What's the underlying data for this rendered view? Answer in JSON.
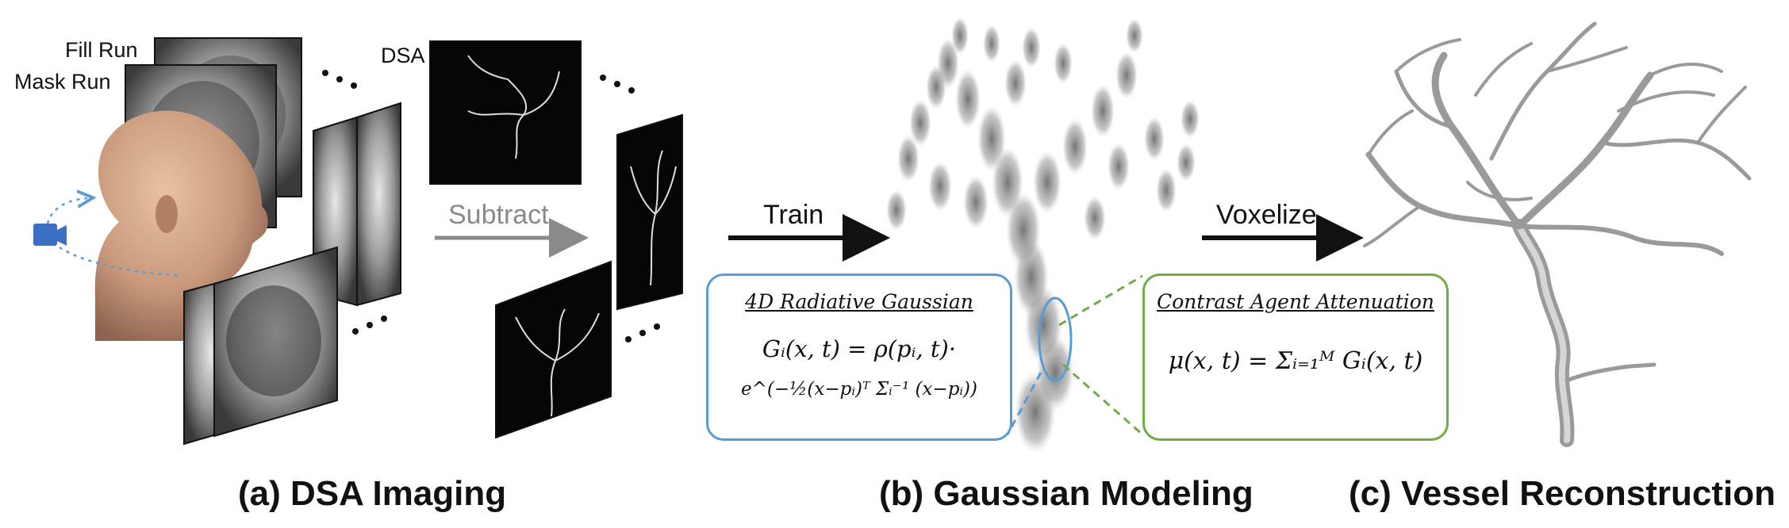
{
  "panel_a": {
    "fill_run": "Fill Run",
    "mask_run": "Mask Run",
    "dsa": "DSA",
    "subtract": "Subtract",
    "caption": "(a) DSA Imaging"
  },
  "panel_b": {
    "train": "Train",
    "caption": "(b) Gaussian Modeling",
    "box_title": "4D Radiative Gaussian",
    "equation_line1": "Gᵢ(x, t) = ρ(pᵢ, t)·",
    "equation_line2": "e^(−½(x−pᵢ)ᵀ Σᵢ⁻¹ (x−pᵢ))"
  },
  "panel_c": {
    "voxelize": "Voxelize",
    "caption": "(c) Vessel Reconstruction",
    "box_title": "Contrast Agent Attenuation",
    "equation": "μ(x, t) = Σᵢ₌₁ᴹ Gᵢ(x, t)"
  },
  "colors": {
    "blue_box": "#5b9bd5",
    "green_box": "#70ad47",
    "arrow": "#111111",
    "subtract_arrow": "#8a8a8a",
    "camera": "#3a6fc4"
  },
  "icons": [
    "camera-icon",
    "head-model",
    "xray-frame",
    "vessel-tree"
  ]
}
